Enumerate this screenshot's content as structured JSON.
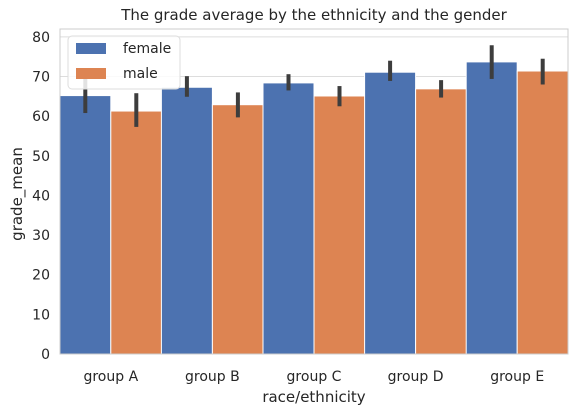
{
  "chart_data": {
    "type": "bar",
    "title": "The grade average by the ethnicity and the gender",
    "xlabel": "race/ethnicity",
    "ylabel": "grade_mean",
    "categories": [
      "group A",
      "group B",
      "group C",
      "group D",
      "group E"
    ],
    "ylim": [
      0,
      82
    ],
    "yticks": [
      0,
      10,
      20,
      30,
      40,
      50,
      60,
      70,
      80
    ],
    "grid": true,
    "legend_position": "top-left",
    "series": [
      {
        "name": "female",
        "color": "#4c72b0",
        "values": [
          65.2,
          67.3,
          68.4,
          71.1,
          73.7
        ],
        "ci_low": [
          60.8,
          64.9,
          66.5,
          68.9,
          69.4
        ],
        "ci_high": [
          69.4,
          70.1,
          70.6,
          74.0,
          77.9
        ]
      },
      {
        "name": "male",
        "color": "#dd8452",
        "values": [
          61.3,
          62.9,
          65.1,
          66.9,
          71.4
        ],
        "ci_low": [
          57.3,
          59.7,
          62.5,
          64.7,
          68.0
        ],
        "ci_high": [
          65.8,
          66.0,
          67.6,
          69.1,
          74.5
        ]
      }
    ]
  }
}
